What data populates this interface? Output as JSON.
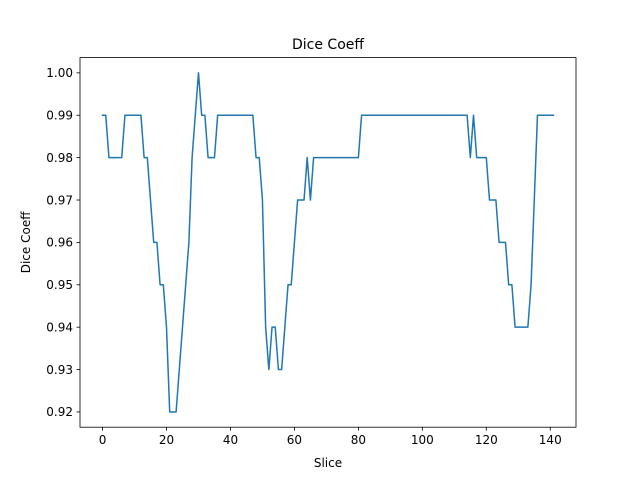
{
  "chart_data": {
    "type": "line",
    "title": "Dice Coeff",
    "xlabel": "Slice",
    "ylabel": "Dice Coeff",
    "xlim": [
      -7.05,
      148.05
    ],
    "ylim": [
      0.9164,
      1.0036
    ],
    "grid": false,
    "x_ticks": [
      0,
      20,
      40,
      60,
      80,
      100,
      120,
      140
    ],
    "y_ticks": [
      0.92,
      0.93,
      0.94,
      0.95,
      0.96,
      0.97,
      0.98,
      0.99,
      1.0
    ],
    "x_tick_labels": [
      "0",
      "20",
      "40",
      "60",
      "80",
      "100",
      "120",
      "140"
    ],
    "y_tick_labels": [
      "0.92",
      "0.93",
      "0.94",
      "0.95",
      "0.96",
      "0.97",
      "0.98",
      "0.99",
      "1.00"
    ],
    "series": [
      {
        "color": "#1f77b4",
        "x": [
          0,
          1,
          2,
          3,
          4,
          5,
          6,
          7,
          8,
          9,
          10,
          11,
          12,
          13,
          14,
          15,
          16,
          17,
          18,
          19,
          20,
          21,
          22,
          23,
          24,
          25,
          26,
          27,
          28,
          29,
          30,
          31,
          32,
          33,
          34,
          35,
          36,
          37,
          38,
          39,
          40,
          41,
          42,
          43,
          44,
          45,
          46,
          47,
          48,
          49,
          50,
          51,
          52,
          53,
          54,
          55,
          56,
          57,
          58,
          59,
          60,
          61,
          62,
          63,
          64,
          65,
          66,
          67,
          68,
          69,
          70,
          71,
          72,
          73,
          74,
          75,
          76,
          77,
          78,
          79,
          80,
          81,
          82,
          83,
          84,
          85,
          86,
          87,
          88,
          89,
          90,
          91,
          92,
          93,
          94,
          95,
          96,
          97,
          98,
          99,
          100,
          101,
          102,
          103,
          104,
          105,
          106,
          107,
          108,
          109,
          110,
          111,
          112,
          113,
          114,
          115,
          116,
          117,
          118,
          119,
          120,
          121,
          122,
          123,
          124,
          125,
          126,
          127,
          128,
          129,
          130,
          131,
          132,
          133,
          134,
          135,
          136,
          137,
          138,
          139,
          140,
          141
        ],
        "values": [
          0.99,
          0.99,
          0.98,
          0.98,
          0.98,
          0.98,
          0.98,
          0.99,
          0.99,
          0.99,
          0.99,
          0.99,
          0.99,
          0.98,
          0.98,
          0.97,
          0.96,
          0.96,
          0.95,
          0.95,
          0.94,
          0.92,
          0.92,
          0.92,
          0.93,
          0.94,
          0.95,
          0.96,
          0.98,
          0.99,
          1.0,
          0.99,
          0.99,
          0.98,
          0.98,
          0.98,
          0.99,
          0.99,
          0.99,
          0.99,
          0.99,
          0.99,
          0.99,
          0.99,
          0.99,
          0.99,
          0.99,
          0.99,
          0.98,
          0.98,
          0.97,
          0.94,
          0.93,
          0.94,
          0.94,
          0.93,
          0.93,
          0.94,
          0.95,
          0.95,
          0.96,
          0.97,
          0.97,
          0.97,
          0.98,
          0.97,
          0.98,
          0.98,
          0.98,
          0.98,
          0.98,
          0.98,
          0.98,
          0.98,
          0.98,
          0.98,
          0.98,
          0.98,
          0.98,
          0.98,
          0.98,
          0.99,
          0.99,
          0.99,
          0.99,
          0.99,
          0.99,
          0.99,
          0.99,
          0.99,
          0.99,
          0.99,
          0.99,
          0.99,
          0.99,
          0.99,
          0.99,
          0.99,
          0.99,
          0.99,
          0.99,
          0.99,
          0.99,
          0.99,
          0.99,
          0.99,
          0.99,
          0.99,
          0.99,
          0.99,
          0.99,
          0.99,
          0.99,
          0.99,
          0.99,
          0.98,
          0.99,
          0.98,
          0.98,
          0.98,
          0.98,
          0.97,
          0.97,
          0.97,
          0.96,
          0.96,
          0.96,
          0.95,
          0.95,
          0.94,
          0.94,
          0.94,
          0.94,
          0.94,
          0.95,
          0.97,
          0.99,
          0.99,
          0.99,
          0.99,
          0.99,
          0.99
        ]
      }
    ]
  }
}
